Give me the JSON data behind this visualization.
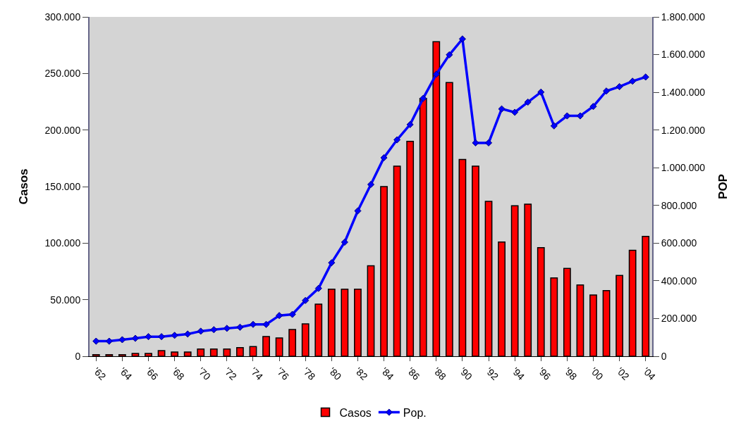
{
  "chart_data": {
    "type": "bar",
    "categories": [
      "'62",
      null,
      "'64",
      null,
      "'66",
      null,
      "'68",
      null,
      "'70",
      null,
      "'72",
      null,
      "'74",
      null,
      "'76",
      null,
      "'78",
      null,
      "'80",
      null,
      "'82",
      null,
      "'84",
      null,
      "'86",
      null,
      "'88",
      null,
      "'90",
      null,
      "'92",
      null,
      "'94",
      null,
      "'96",
      null,
      "'98",
      null,
      "'00",
      null,
      "'02",
      null,
      "'04"
    ],
    "series": [
      {
        "name": "Casos",
        "color": "#ff0000",
        "values": [
          1400,
          1400,
          1400,
          2500,
          2500,
          5000,
          3700,
          3700,
          6400,
          6400,
          6400,
          7600,
          8600,
          17500,
          16200,
          23600,
          28600,
          46000,
          59300,
          59300,
          59300,
          80000,
          150000,
          168000,
          190000,
          228000,
          278000,
          242000,
          174000,
          168000,
          137000,
          101000,
          133000,
          134500,
          96000,
          69300,
          77600,
          63000,
          54100,
          58000,
          71400,
          93600,
          106000
        ]
      },
      {
        "name": "Pop.",
        "type": "line",
        "axis": "y2",
        "color": "#0000ff",
        "values": [
          80000,
          80000,
          88000,
          95000,
          104000,
          104000,
          111000,
          118000,
          133000,
          141000,
          148000,
          154000,
          169000,
          169000,
          216000,
          222000,
          296000,
          360000,
          496000,
          605000,
          771000,
          911000,
          1053000,
          1148000,
          1229000,
          1368000,
          1496000,
          1599000,
          1683000,
          1132000,
          1132000,
          1312000,
          1294000,
          1348000,
          1401000,
          1222000,
          1275000,
          1275000,
          1325000,
          1407000,
          1430000,
          1459000,
          1481000
        ]
      }
    ],
    "ylabel": "Casos",
    "y2label": "POP",
    "ylim": [
      0,
      300000
    ],
    "yticks": [
      {
        "value": 0,
        "label": "0"
      },
      {
        "value": 50000,
        "label": "50.000"
      },
      {
        "value": 100000,
        "label": "100.000"
      },
      {
        "value": 150000,
        "label": "150.000"
      },
      {
        "value": 200000,
        "label": "200.000"
      },
      {
        "value": 250000,
        "label": "250.000"
      },
      {
        "value": 300000,
        "label": "300.000"
      }
    ],
    "y2lim": [
      0,
      1800000
    ],
    "y2ticks": [
      {
        "value": 0,
        "label": "0"
      },
      {
        "value": 200000,
        "label": "200.000"
      },
      {
        "value": 400000,
        "label": "400.000"
      },
      {
        "value": 600000,
        "label": "600.000"
      },
      {
        "value": 800000,
        "label": "800.000"
      },
      {
        "value": 1000000,
        "label": "1.000.000"
      },
      {
        "value": 1200000,
        "label": "1.200.000"
      },
      {
        "value": 1400000,
        "label": "1.400.000"
      },
      {
        "value": 1600000,
        "label": "1.600.000"
      },
      {
        "value": 1800000,
        "label": "1.800.000"
      }
    ],
    "grid": false,
    "legend": "bottom",
    "marker": "diamond",
    "line_style": "solid"
  }
}
